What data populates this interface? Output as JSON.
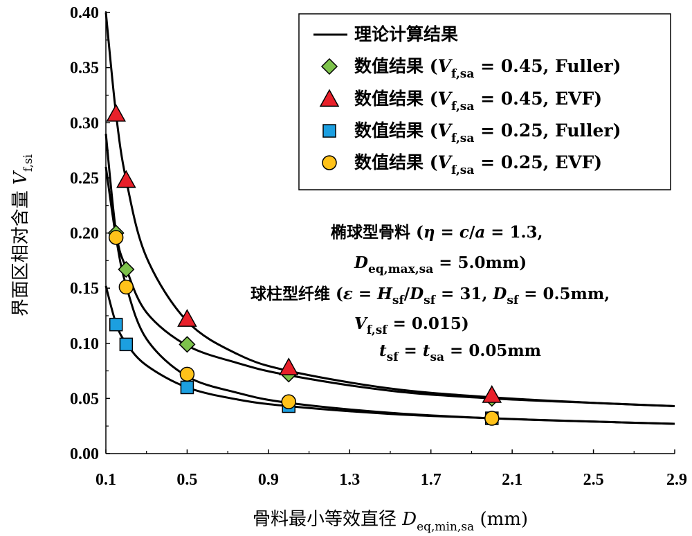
{
  "chart_data": {
    "type": "scatter",
    "xlabel": {
      "prefix": "骨料最小等效直径 ",
      "var": "D",
      "sub": "eq,min,sa",
      "suffix": " (mm)"
    },
    "ylabel": {
      "prefix": "界面区相对含量 ",
      "var": "V",
      "sub": "f,si"
    },
    "xlim": [
      0.1,
      2.9
    ],
    "ylim": [
      0.0,
      0.4
    ],
    "xticks": [
      "0.1",
      "0.5",
      "0.9",
      "1.3",
      "1.7",
      "2.1",
      "2.5",
      "2.9"
    ],
    "yticks": [
      "0.00",
      "0.05",
      "0.10",
      "0.15",
      "0.20",
      "0.25",
      "0.30",
      "0.35",
      "0.40"
    ],
    "legend_position": "top-right",
    "lines": [
      {
        "name": "理论计算结果",
        "x": [
          0.1,
          0.15,
          0.2,
          0.3,
          0.5,
          0.75,
          1.0,
          1.5,
          2.0,
          2.5,
          2.9
        ],
        "y": [
          0.4,
          0.308,
          0.248,
          0.178,
          0.12,
          0.09,
          0.075,
          0.059,
          0.051,
          0.046,
          0.043
        ]
      },
      {
        "name": "理论计算结果",
        "x": [
          0.1,
          0.15,
          0.2,
          0.3,
          0.5,
          0.75,
          1.0,
          1.5,
          2.0,
          2.5,
          2.9
        ],
        "y": [
          0.29,
          0.201,
          0.168,
          0.128,
          0.098,
          0.082,
          0.071,
          0.057,
          0.05,
          0.046,
          0.043
        ]
      },
      {
        "name": "理论计算结果",
        "x": [
          0.1,
          0.15,
          0.2,
          0.3,
          0.5,
          0.75,
          1.0,
          1.5,
          2.0,
          2.5,
          2.9
        ],
        "y": [
          0.26,
          0.196,
          0.152,
          0.104,
          0.07,
          0.055,
          0.046,
          0.037,
          0.032,
          0.029,
          0.027
        ]
      },
      {
        "name": "理论计算结果",
        "x": [
          0.1,
          0.15,
          0.2,
          0.3,
          0.5,
          0.75,
          1.0,
          1.5,
          2.0,
          2.5,
          2.9
        ],
        "y": [
          0.152,
          0.118,
          0.1,
          0.08,
          0.06,
          0.049,
          0.043,
          0.036,
          0.032,
          0.029,
          0.027
        ]
      }
    ],
    "series": [
      {
        "name": {
          "pre": "数值结果 (",
          "var": "V",
          "sub": "f,sa",
          "post": " = 0.45, Fuller)"
        },
        "marker": "diamond",
        "color": "#7dc24b",
        "x": [
          0.15,
          0.2,
          0.5,
          1.0,
          2.0
        ],
        "y": [
          0.2,
          0.167,
          0.099,
          0.072,
          0.05
        ]
      },
      {
        "name": {
          "pre": "数值结果 (",
          "var": "V",
          "sub": "f,sa",
          "post": " = 0.45, EVF)"
        },
        "marker": "triangle",
        "color": "#e8202a",
        "x": [
          0.15,
          0.2,
          0.5,
          1.0,
          2.0
        ],
        "y": [
          0.308,
          0.248,
          0.122,
          0.078,
          0.053
        ]
      },
      {
        "name": {
          "pre": "数值结果 (",
          "var": "V",
          "sub": "f,sa",
          "post": " = 0.25, Fuller)"
        },
        "marker": "square",
        "color": "#1c9fe0",
        "x": [
          0.15,
          0.2,
          0.5,
          1.0,
          2.0
        ],
        "y": [
          0.117,
          0.099,
          0.06,
          0.043,
          0.032
        ]
      },
      {
        "name": {
          "pre": "数值结果 (",
          "var": "V",
          "sub": "f,sa",
          "post": " = 0.25, EVF)"
        },
        "marker": "circle",
        "color": "#ffc21a",
        "x": [
          0.15,
          0.2,
          0.5,
          1.0,
          2.0
        ],
        "y": [
          0.196,
          0.151,
          0.072,
          0.047,
          0.032
        ]
      }
    ],
    "annotation": [
      [
        {
          "t": "椭球型骨料  ("
        },
        {
          "t": "η",
          "i": true
        },
        {
          "t": " = "
        },
        {
          "t": "c",
          "i": true
        },
        {
          "t": "/"
        },
        {
          "t": "a",
          "i": true
        },
        {
          "t": " = 1.3,"
        }
      ],
      [
        {
          "t": "D",
          "i": true
        },
        {
          "t": "eq,max,sa",
          "s": true
        },
        {
          "t": " = 5.0mm)"
        }
      ],
      [
        {
          "t": "球柱型纤维  ("
        },
        {
          "t": "ε",
          "i": true
        },
        {
          "t": " = "
        },
        {
          "t": "H",
          "i": true
        },
        {
          "t": "sf",
          "s": true
        },
        {
          "t": "/"
        },
        {
          "t": "D",
          "i": true
        },
        {
          "t": "sf",
          "s": true
        },
        {
          "t": " = 31, "
        },
        {
          "t": "D",
          "i": true
        },
        {
          "t": "sf",
          "s": true
        },
        {
          "t": " = 0.5mm,"
        }
      ],
      [
        {
          "t": "V",
          "i": true
        },
        {
          "t": "f,sf",
          "s": true
        },
        {
          "t": " = 0.015)"
        }
      ],
      [
        {
          "t": "t",
          "i": true
        },
        {
          "t": "sf",
          "s": true
        },
        {
          "t": " = "
        },
        {
          "t": "t",
          "i": true
        },
        {
          "t": "sa",
          "s": true
        },
        {
          "t": " = 0.05mm"
        }
      ]
    ]
  }
}
